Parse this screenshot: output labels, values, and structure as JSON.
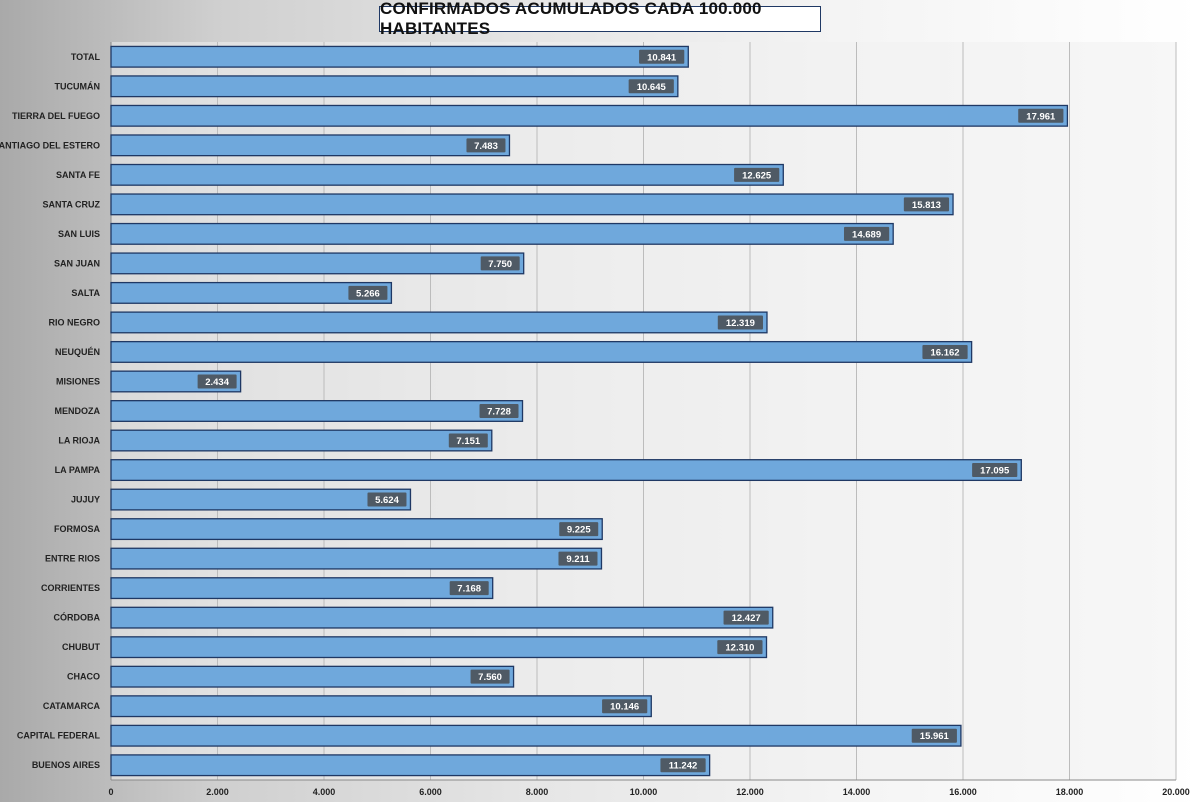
{
  "chart_data": {
    "type": "bar",
    "orientation": "horizontal",
    "title": "CONFIRMADOS ACUMULADOS CADA 100.000 HABITANTES",
    "categories": [
      "TOTAL",
      "TUCUMÁN",
      "TIERRA  DEL FUEGO",
      "SANTIAGO  DEL ESTERO",
      "SANTA  FE",
      "SANTA  CRUZ",
      "SAN  LUIS",
      "SAN  JUAN",
      "SALTA",
      "RIO  NEGRO",
      "NEUQUÉN",
      "MISIONES",
      "MENDOZA",
      "LA  RIOJA",
      "LA  PAMPA",
      "JUJUY",
      "FORMOSA",
      "ENTRE  RIOS",
      "CORRIENTES",
      "CÓRDOBA",
      "CHUBUT",
      "CHACO",
      "CATAMARCA",
      "CAPITAL  FEDERAL",
      "BUENOS  AIRES"
    ],
    "values": [
      10841,
      10645,
      17961,
      7483,
      12625,
      15813,
      14689,
      7750,
      5266,
      12319,
      16162,
      2434,
      7728,
      7151,
      17095,
      5624,
      9225,
      9211,
      7168,
      12427,
      12310,
      7560,
      10146,
      15961,
      11242
    ],
    "value_labels": [
      "10.841",
      "10.645",
      "17.961",
      "7.483",
      "12.625",
      "15.813",
      "14.689",
      "7.750",
      "5.266",
      "12.319",
      "16.162",
      "2.434",
      "7.728",
      "7.151",
      "17.095",
      "5.624",
      "9.225",
      "9.211",
      "7.168",
      "12.427",
      "12.310",
      "7.560",
      "10.146",
      "15.961",
      "11.242"
    ],
    "x_ticks": [
      0,
      2000,
      4000,
      6000,
      8000,
      10000,
      12000,
      14000,
      16000,
      18000,
      20000
    ],
    "x_tick_labels": [
      "0",
      "2.000",
      "4.000",
      "6.000",
      "8.000",
      "10.000",
      "12.000",
      "14.000",
      "16.000",
      "18.000",
      "20.000"
    ],
    "xlim": [
      0,
      20000
    ],
    "xlabel": "",
    "ylabel": "",
    "grid": "vertical",
    "legend": "none",
    "bar_color": "#6fa8dc",
    "bar_border_color": "#1f3864",
    "label_box_color": "#4f5a65",
    "label_text_color": "#ffffff"
  }
}
